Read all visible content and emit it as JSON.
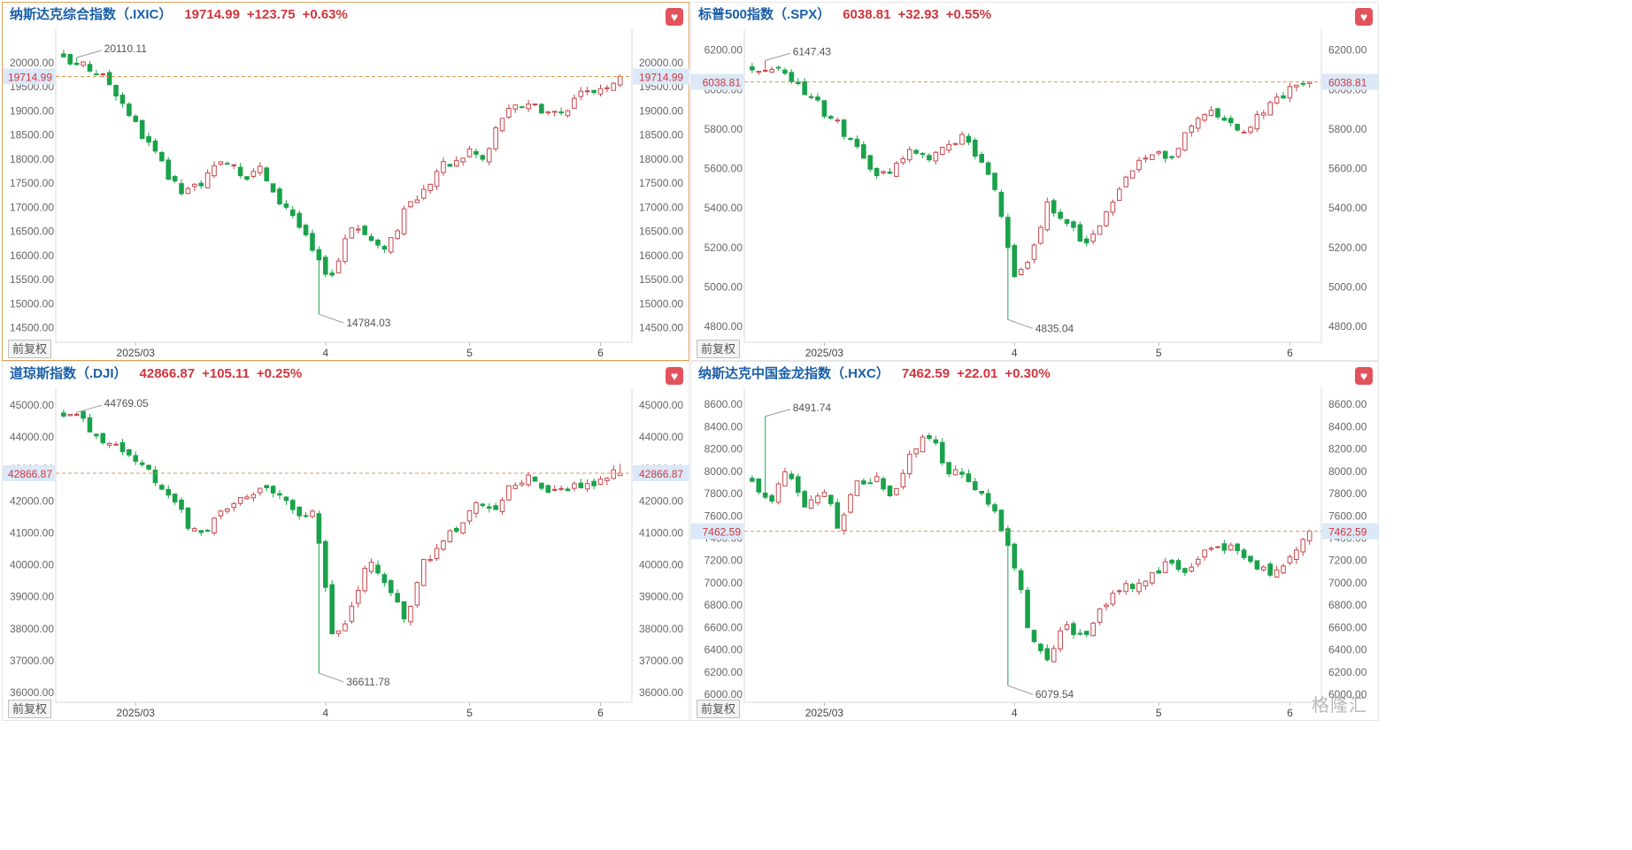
{
  "colors": {
    "up": "#c7484e",
    "down": "#1aa24a",
    "name": "#1a5fa8",
    "change": "#d0363d",
    "refline": "#d89a58",
    "axis_text": "#666666",
    "highlight_bg": "#dbe8f7"
  },
  "ui": {
    "restore_label": "前复权",
    "fav_icon": "heart-icon",
    "watermark": "格隆汇"
  },
  "panels": [
    {
      "id": "ixic",
      "name": "纳斯达克综合指数（.IXIC）",
      "price": "19714.99",
      "change": "+123.75",
      "pct": "+0.63%",
      "selected": true
    },
    {
      "id": "spx",
      "name": "标普500指数（.SPX）",
      "price": "6038.81",
      "change": "+32.93",
      "pct": "+0.55%",
      "selected": false
    },
    {
      "id": "dji",
      "name": "道琼斯指数（.DJI）",
      "price": "42866.87",
      "change": "+105.11",
      "pct": "+0.25%",
      "selected": false
    },
    {
      "id": "hxc",
      "name": "纳斯达克中国金龙指数（.HXC）",
      "price": "7462.59",
      "change": "+22.01",
      "pct": "+0.30%",
      "selected": false
    }
  ],
  "chart_data": [
    {
      "type": "candlestick",
      "title": "纳斯达克综合指数（.IXIC）",
      "yticks": [
        "20000.00",
        "19500.00",
        "19000.00",
        "18500.00",
        "18000.00",
        "17500.00",
        "17000.00",
        "16500.00",
        "16000.00",
        "15500.00",
        "15000.00",
        "14500.00"
      ],
      "ylim": [
        14200,
        20550
      ],
      "xticks": [
        "2025/03",
        "4",
        "5",
        "6"
      ],
      "last": "19714.99",
      "high_label": "20110.11",
      "low_label": "14784.03",
      "anchors": [
        20035,
        19950,
        19850,
        19600,
        19150,
        18600,
        18150,
        17600,
        17250,
        17500,
        17750,
        18050,
        17650,
        17850,
        17200,
        17000,
        16400,
        15800,
        15600,
        16700,
        16450,
        16100,
        16450,
        17100,
        17350,
        17850,
        17900,
        18200,
        17950,
        18850,
        19050,
        19200,
        19000,
        18950,
        19250,
        19400,
        19550,
        19714.99
      ],
      "high": 20110.11,
      "low": 14784.03
    },
    {
      "type": "candlestick",
      "title": "标普500指数（.SPX）",
      "yticks": [
        "6200.00",
        "6000.00",
        "5800.00",
        "5600.00",
        "5400.00",
        "5200.00",
        "5000.00",
        "4800.00"
      ],
      "ylim": [
        4720,
        6270
      ],
      "xticks": [
        "2025/03",
        "4",
        "5",
        "6"
      ],
      "last": "6038.81",
      "high_label": "6147.43",
      "low_label": "4835.04",
      "anchors": [
        6120,
        6110,
        6090,
        6000,
        5900,
        5820,
        5700,
        5560,
        5600,
        5680,
        5640,
        5700,
        5780,
        5640,
        5480,
        5070,
        5150,
        5420,
        5350,
        5200,
        5300,
        5500,
        5620,
        5680,
        5660,
        5800,
        5900,
        5860,
        5780,
        5860,
        5950,
        6000,
        6038.81
      ],
      "high": 6147.43,
      "low": 4835.04
    },
    {
      "type": "candlestick",
      "title": "道琼斯指数（.DJI）",
      "yticks": [
        "45000.00",
        "44000.00",
        "43000.00",
        "42000.00",
        "41000.00",
        "40000.00",
        "39000.00",
        "38000.00",
        "37000.00",
        "36000.00"
      ],
      "ylim": [
        35700,
        45300
      ],
      "xticks": [
        "2025/03",
        "4",
        "5",
        "6"
      ],
      "last": "42866.87",
      "high_label": "44769.05",
      "low_label": "36611.78",
      "anchors": [
        44700,
        44500,
        44000,
        43600,
        43300,
        42700,
        42200,
        41200,
        41100,
        41700,
        42100,
        42500,
        42300,
        41600,
        41700,
        37800,
        38500,
        40200,
        39300,
        38300,
        40000,
        40600,
        41200,
        41800,
        41700,
        42500,
        42900,
        42200,
        42300,
        42500,
        42700,
        42866.87
      ],
      "high": 44769.05,
      "low": 36611.78
    },
    {
      "type": "candlestick",
      "title": "纳斯达克中国金龙指数（.HXC）",
      "yticks": [
        "8600.00",
        "8400.00",
        "8200.00",
        "8000.00",
        "7800.00",
        "7600.00",
        "7400.00",
        "7200.00",
        "7000.00",
        "6800.00",
        "6600.00",
        "6400.00",
        "6200.00",
        "6000.00"
      ],
      "ylim": [
        5930,
        8680
      ],
      "xticks": [
        "2025/03",
        "4",
        "5",
        "6"
      ],
      "last": "7462.59",
      "high_label": "8491.74",
      "low_label": "6079.54",
      "anchors": [
        7900,
        7700,
        8050,
        7650,
        7850,
        7500,
        7900,
        7950,
        7800,
        8100,
        8400,
        8050,
        7950,
        7800,
        7600,
        7200,
        6500,
        6350,
        6600,
        6500,
        6800,
        6950,
        7000,
        7100,
        7200,
        7100,
        7300,
        7350,
        7250,
        7150,
        7100,
        7300,
        7462.59
      ],
      "high": 8491.74,
      "low": 6079.54
    }
  ]
}
